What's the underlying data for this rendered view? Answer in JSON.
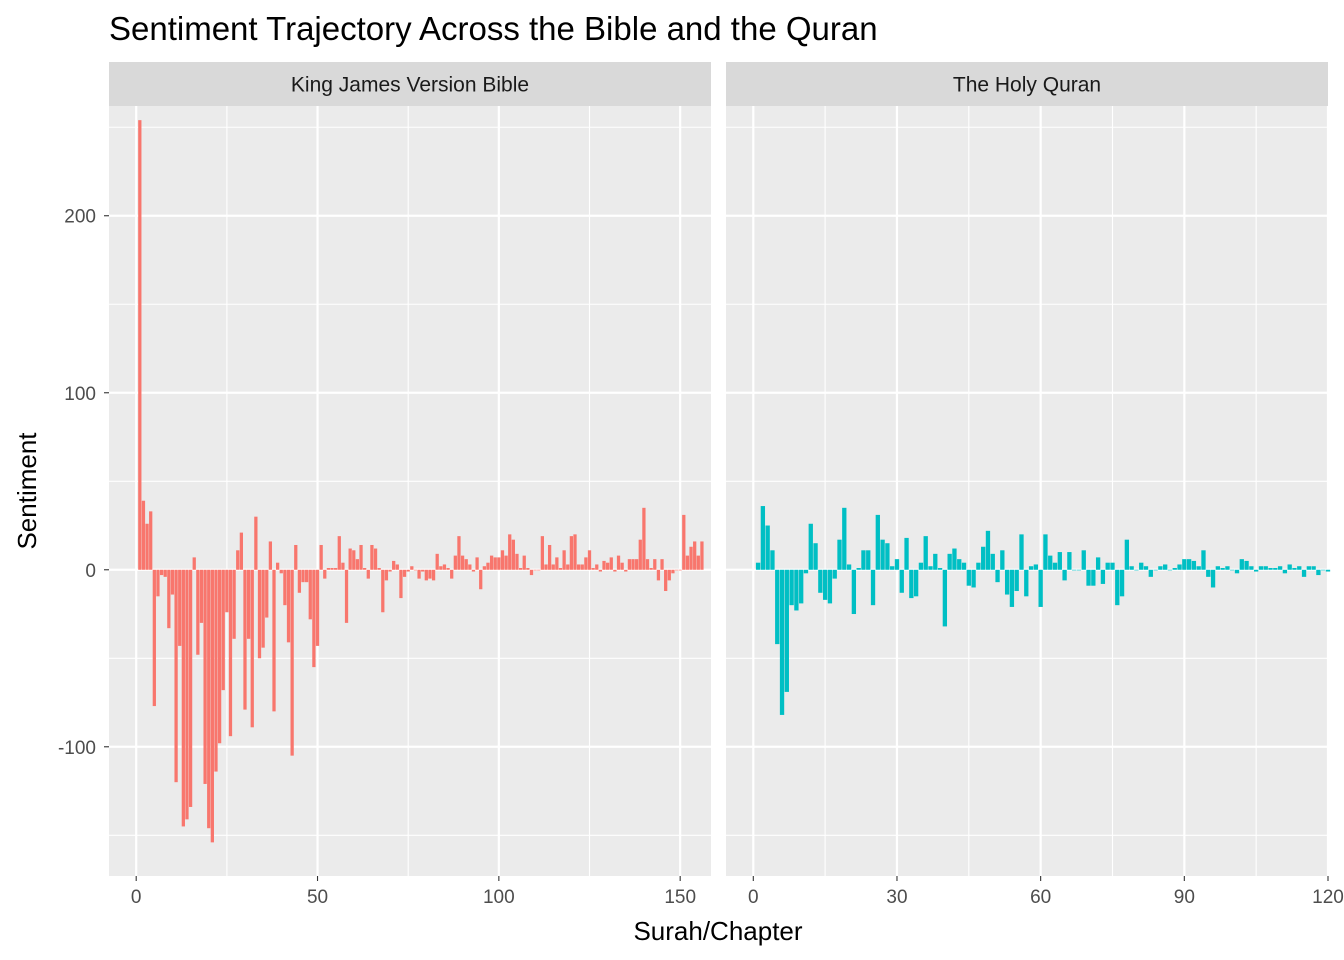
{
  "chart_data": {
    "type": "bar",
    "title": "Sentiment Trajectory Across the Bible and the Quran",
    "xlabel": "Surah/Chapter",
    "ylabel": "Sentiment",
    "ylim": [
      -173,
      262
    ],
    "y_ticks": [
      -100,
      0,
      100,
      200
    ],
    "y_tick_labels": [
      "-100",
      "0",
      "100",
      "200"
    ],
    "grid": true,
    "legend": "none",
    "panels": [
      {
        "name": "King James Version Bible",
        "color": "#F8766D",
        "xlim": [
          -7.5,
          158.5
        ],
        "x_ticks": [
          0,
          50,
          100,
          150
        ],
        "x_tick_labels": [
          "0",
          "50",
          "100",
          "150"
        ],
        "values": [
          254,
          39,
          26,
          33,
          -77,
          -15,
          -3,
          -4,
          -33,
          -14,
          -120,
          -43,
          -145,
          -141,
          -134,
          7,
          -48,
          -30,
          -121,
          -146,
          -154,
          -114,
          -98,
          -68,
          -24,
          -94,
          -39,
          11,
          21,
          -79,
          -39,
          -89,
          30,
          -50,
          -44,
          -27,
          16,
          -80,
          4,
          -2,
          -20,
          -41,
          -105,
          14,
          -13,
          -7,
          -7,
          -28,
          -55,
          -43,
          14,
          -5,
          1,
          1,
          1,
          19,
          4,
          -30,
          12,
          11,
          6,
          14,
          1,
          -5,
          14,
          12,
          1,
          -24,
          -6,
          -1,
          5,
          3,
          -16,
          -4,
          -1,
          2,
          0,
          -5,
          -1,
          -6,
          -5,
          -6,
          9,
          2,
          3,
          1,
          -5,
          8,
          19,
          8,
          6,
          3,
          -1,
          7,
          -11,
          2,
          4,
          8,
          7,
          7,
          11,
          8,
          20,
          17,
          9,
          1,
          8,
          1,
          -3,
          0,
          0,
          19,
          3,
          14,
          3,
          7,
          1,
          11,
          3,
          19,
          20,
          3,
          3,
          7,
          11,
          1,
          3,
          -1,
          5,
          4,
          7,
          -1,
          8,
          4,
          -1,
          6,
          6,
          6,
          17,
          35,
          6,
          1,
          6,
          -6,
          6,
          -12,
          -6,
          -2,
          0,
          0,
          31,
          8,
          13,
          16,
          8,
          16
        ]
      },
      {
        "name": "The Holy Quran",
        "color": "#00BFC4",
        "xlim": [
          -5.7,
          120.0
        ],
        "x_ticks": [
          0,
          30,
          60,
          90,
          120
        ],
        "x_tick_labels": [
          "0",
          "30",
          "60",
          "90",
          "120"
        ],
        "values": [
          4,
          36,
          25,
          11,
          -42,
          -82,
          -69,
          -20,
          -23,
          -19,
          -2,
          26,
          15,
          -13,
          -17,
          -19,
          -5,
          17,
          35,
          3,
          -25,
          1,
          11,
          11,
          -20,
          31,
          17,
          15,
          2,
          6,
          -13,
          18,
          -16,
          -15,
          4,
          19,
          2,
          9,
          1,
          -32,
          9,
          12,
          6,
          4,
          -9,
          -10,
          4,
          13,
          22,
          9,
          -7,
          11,
          -14,
          -21,
          -12,
          20,
          -15,
          2,
          3,
          -21,
          20,
          8,
          4,
          10,
          -6,
          10,
          0,
          0,
          11,
          -9,
          -9,
          7,
          -8,
          4,
          4,
          -20,
          -15,
          17,
          2,
          0,
          4,
          2,
          -4,
          0,
          2,
          3,
          0,
          1,
          3,
          6,
          6,
          5,
          2,
          11,
          -4,
          -10,
          2,
          1,
          2,
          0,
          -2,
          6,
          5,
          2,
          -1,
          2,
          2,
          1,
          1,
          2,
          -2,
          3,
          1,
          2,
          -4,
          2,
          2,
          -3,
          0,
          -1
        ]
      }
    ]
  }
}
